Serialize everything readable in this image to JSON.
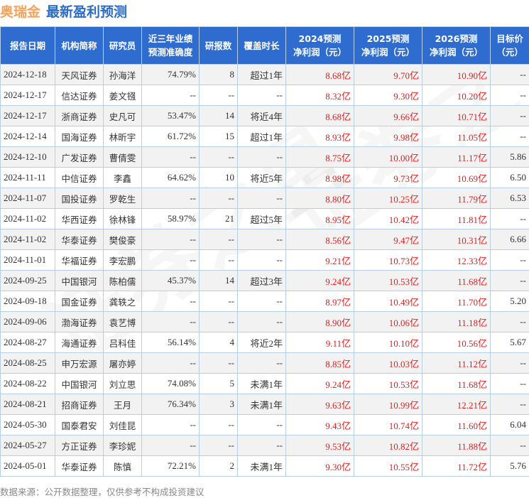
{
  "title": {
    "company": "奥瑞金",
    "subtitle": "最新盈利预测"
  },
  "columns": [
    "报告日期",
    "机构简称",
    "研究员",
    "近三年业绩\n预测准确度",
    "研报数",
    "覆盖时长",
    "2024预测\n净利润（元）",
    "2025预测\n净利润（元）",
    "2026预测\n净利润（元）",
    "目标价\n（元）"
  ],
  "rows": [
    [
      "2024-12-18",
      "天风证券",
      "孙海洋",
      "74.79%",
      "8",
      "超过1年",
      "8.68亿",
      "9.70亿",
      "10.90亿",
      "--"
    ],
    [
      "2024-12-17",
      "信达证券",
      "姜文镪",
      "--",
      "--",
      "--",
      "8.32亿",
      "9.30亿",
      "10.20亿",
      "--"
    ],
    [
      "2024-12-17",
      "浙商证券",
      "史凡可",
      "53.47%",
      "14",
      "将近4年",
      "8.68亿",
      "9.66亿",
      "10.71亿",
      "--"
    ],
    [
      "2024-12-14",
      "国海证券",
      "林昕宇",
      "61.72%",
      "15",
      "超过1年",
      "8.93亿",
      "9.98亿",
      "11.05亿",
      "--"
    ],
    [
      "2024-12-10",
      "广发证券",
      "曹倩雯",
      "--",
      "--",
      "--",
      "8.75亿",
      "10.00亿",
      "11.17亿",
      "5.86"
    ],
    [
      "2024-11-11",
      "中信证券",
      "李鑫",
      "64.62%",
      "10",
      "将近5年",
      "8.98亿",
      "9.73亿",
      "10.69亿",
      "6.50"
    ],
    [
      "2024-11-07",
      "国投证券",
      "罗乾生",
      "--",
      "--",
      "--",
      "8.80亿",
      "10.25亿",
      "11.79亿",
      "6.53"
    ],
    [
      "2024-11-02",
      "华西证券",
      "徐林锋",
      "58.97%",
      "21",
      "超过5年",
      "8.95亿",
      "10.42亿",
      "11.81亿",
      "--"
    ],
    [
      "2024-11-02",
      "华泰证券",
      "樊俊豪",
      "--",
      "--",
      "--",
      "8.56亿",
      "9.47亿",
      "10.31亿",
      "6.66"
    ],
    [
      "2024-11-01",
      "华福证券",
      "李宏鹏",
      "--",
      "--",
      "--",
      "9.21亿",
      "10.73亿",
      "12.33亿",
      "--"
    ],
    [
      "2024-09-25",
      "中国银河",
      "陈柏儒",
      "45.37%",
      "14",
      "超过3年",
      "9.24亿",
      "10.53亿",
      "11.68亿",
      "--"
    ],
    [
      "2024-09-18",
      "国金证券",
      "龚轶之",
      "--",
      "--",
      "--",
      "8.97亿",
      "10.49亿",
      "11.70亿",
      "5.20"
    ],
    [
      "2024-09-06",
      "渤海证券",
      "袁艺博",
      "--",
      "--",
      "--",
      "8.90亿",
      "10.06亿",
      "11.18亿",
      "--"
    ],
    [
      "2024-08-27",
      "海通证券",
      "吕科佳",
      "56.14%",
      "4",
      "将近2年",
      "9.11亿",
      "10.10亿",
      "10.56亿",
      "5.67"
    ],
    [
      "2024-08-25",
      "申万宏源",
      "屠亦婷",
      "--",
      "--",
      "--",
      "8.85亿",
      "10.03亿",
      "11.12亿",
      "--"
    ],
    [
      "2024-08-22",
      "中国银河",
      "刘立思",
      "74.08%",
      "5",
      "未满1年",
      "9.24亿",
      "10.53亿",
      "11.68亿",
      "--"
    ],
    [
      "2024-08-21",
      "招商证券",
      "王月",
      "76.34%",
      "3",
      "未满1年",
      "9.63亿",
      "10.99亿",
      "12.21亿",
      "--"
    ],
    [
      "2024-05-30",
      "国泰君安",
      "刘佳昆",
      "--",
      "--",
      "--",
      "9.43亿",
      "10.74亿",
      "11.60亿",
      "6.04"
    ],
    [
      "2024-05-27",
      "方正证券",
      "李珍妮",
      "--",
      "--",
      "--",
      "9.53亿",
      "10.82亿",
      "11.88亿",
      "--"
    ],
    [
      "2024-05-01",
      "华泰证券",
      "陈慎",
      "72.21%",
      "2",
      "未满1年",
      "9.30亿",
      "10.55亿",
      "11.72亿",
      "5.76"
    ]
  ],
  "footer": "数据来源：公开数据整理，仅供参考不构成投资建议",
  "colors": {
    "header_bg": "#2f6ccf",
    "company": "#f5a35c",
    "subtitle": "#2d6cc4",
    "forecast": "#f01818"
  }
}
